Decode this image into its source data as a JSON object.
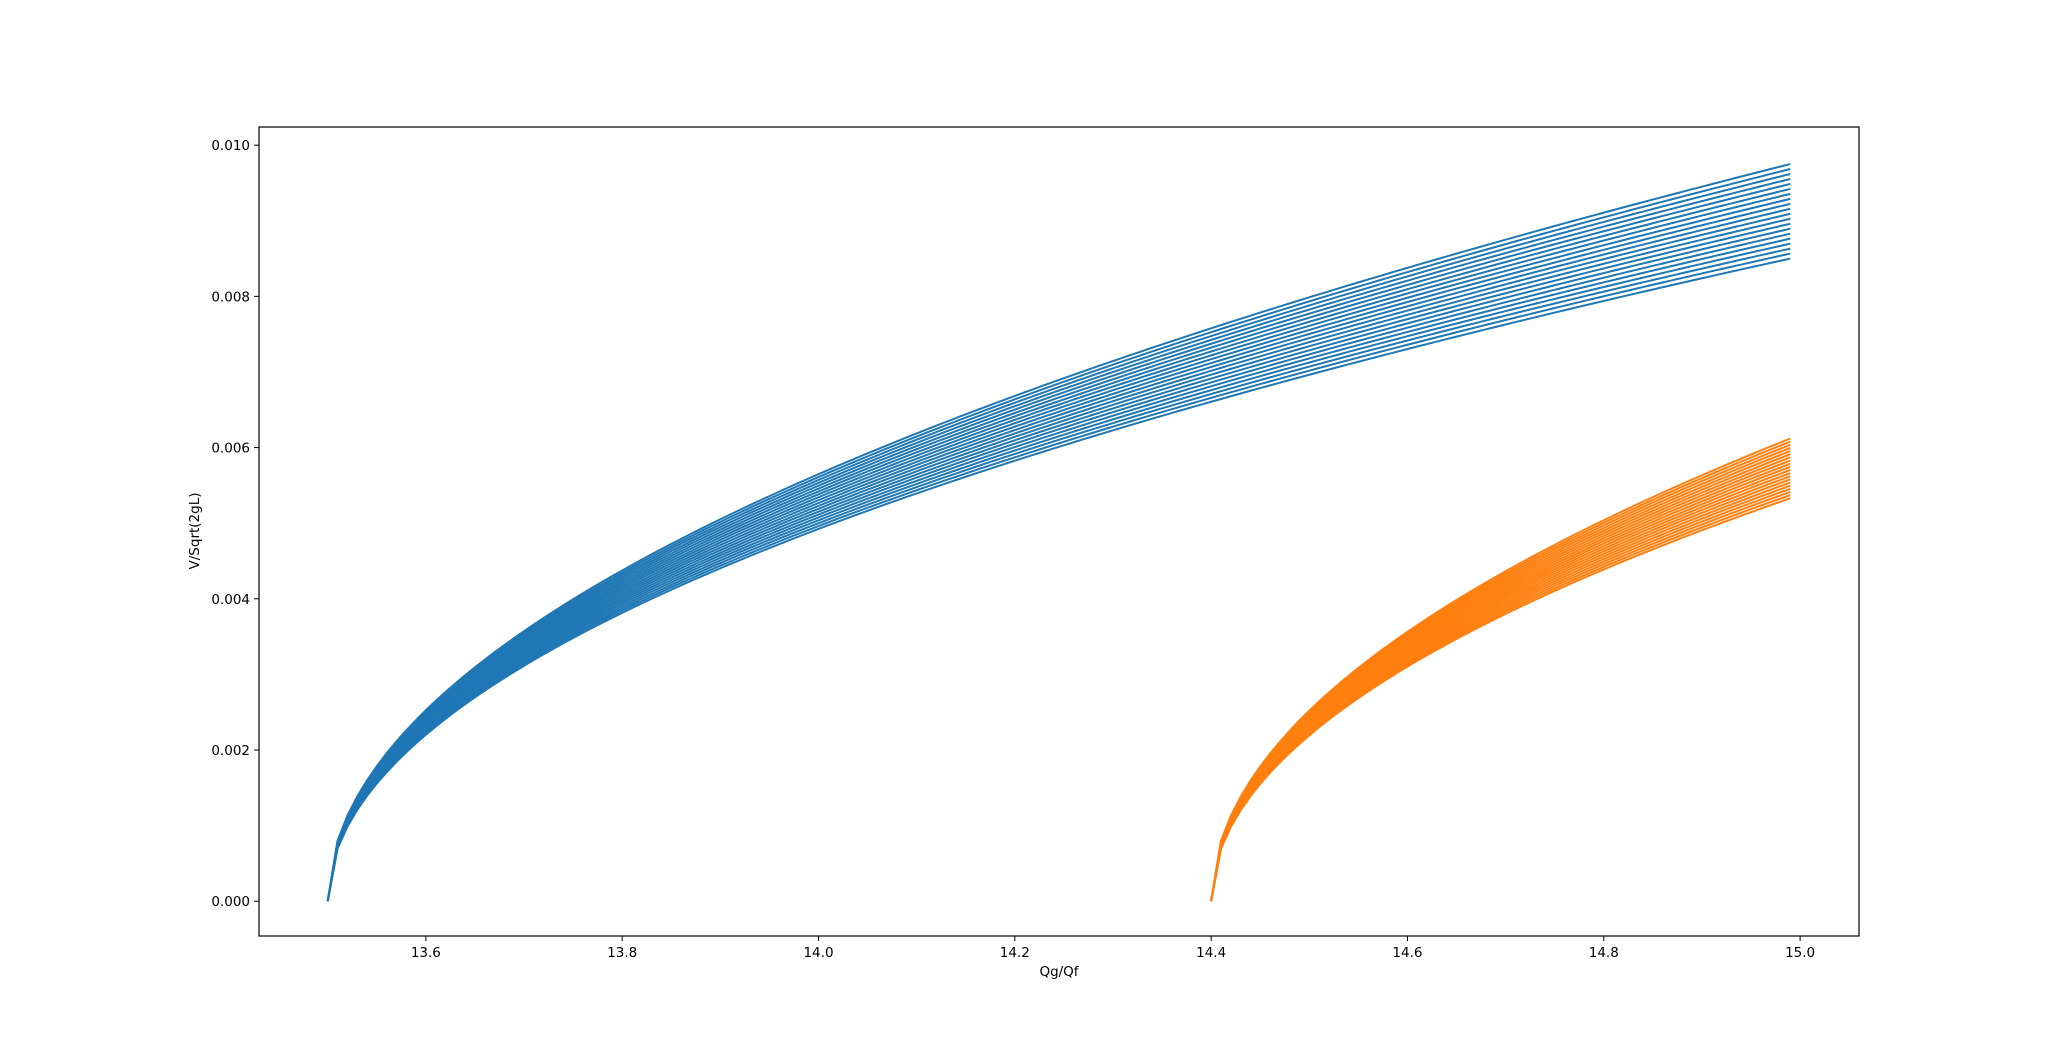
{
  "chart_data": {
    "type": "line",
    "title": "",
    "xlabel": "Qg/Qf",
    "ylabel": "V/Sqrt(2gL)",
    "xlim": [
      13.43,
      15.06
    ],
    "ylim": [
      -0.00046,
      0.01024
    ],
    "xticks": [
      13.6,
      13.8,
      14.0,
      14.2,
      14.4,
      14.6,
      14.8,
      15.0
    ],
    "xtick_labels": [
      "13.6",
      "13.8",
      "14.0",
      "14.2",
      "14.4",
      "14.6",
      "14.8",
      "15.0"
    ],
    "yticks": [
      0.0,
      0.002,
      0.004,
      0.006,
      0.008,
      0.01
    ],
    "ytick_labels": [
      "0.000",
      "0.002",
      "0.004",
      "0.006",
      "0.008",
      "0.010"
    ],
    "grid": false,
    "legend": "none",
    "curve_families": [
      {
        "color": "#1f77b4",
        "count": 20,
        "x_start": 13.5,
        "x_end": 14.99,
        "x_step": 0.01,
        "y_at_end_min": 0.0085,
        "y_at_end_max": 0.00975
      },
      {
        "color": "#ff7f0e",
        "count": 20,
        "x_start": 14.4,
        "x_end": 14.99,
        "x_step": 0.01,
        "y_at_end_min": 0.00533,
        "y_at_end_max": 0.00612
      }
    ]
  }
}
